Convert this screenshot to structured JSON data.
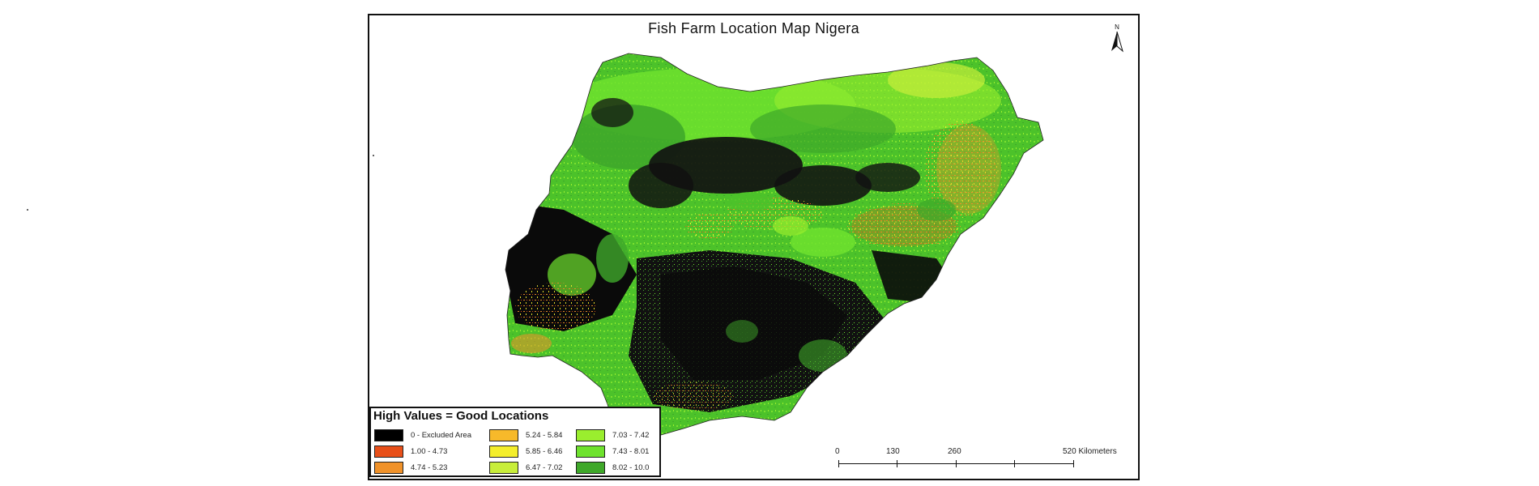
{
  "map": {
    "title": "Fish Farm Location Map Nigera",
    "north_arrow_label": "N",
    "region": "Nigeria",
    "suitability_scale": "0–10, higher values indicate better fish farm locations"
  },
  "legend": {
    "title": "High Values  = Good Locations",
    "classes": [
      {
        "label": "0 - Excluded Area",
        "color": "#000000"
      },
      {
        "label": "1.00 - 4.73",
        "color": "#e8501a"
      },
      {
        "label": "4.74 - 5.23",
        "color": "#f0922a"
      },
      {
        "label": "5.24 - 5.84",
        "color": "#f7b92a"
      },
      {
        "label": "5.85 - 6.46",
        "color": "#f4ee2c"
      },
      {
        "label": "6.47 - 7.02",
        "color": "#c8ee3a"
      },
      {
        "label": "7.03 - 7.42",
        "color": "#9aee2e"
      },
      {
        "label": "7.43 - 8.01",
        "color": "#6ee22e"
      },
      {
        "label": "8.02 - 10.0",
        "color": "#3fa82a"
      }
    ]
  },
  "scale_bar": {
    "labels": [
      "0",
      "130",
      "260",
      "520 Kilometers"
    ]
  }
}
